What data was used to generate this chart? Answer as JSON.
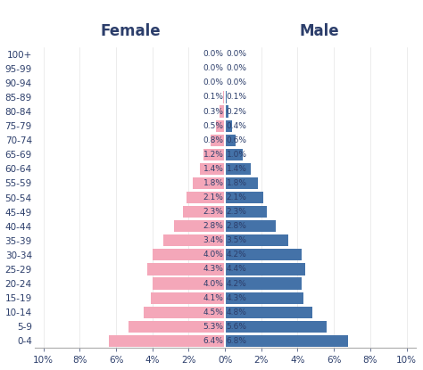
{
  "age_groups": [
    "0-4",
    "5-9",
    "10-14",
    "15-19",
    "20-24",
    "25-29",
    "30-34",
    "35-39",
    "40-44",
    "45-49",
    "50-54",
    "55-59",
    "60-64",
    "65-69",
    "70-74",
    "75-79",
    "80-84",
    "85-89",
    "90-94",
    "95-99",
    "100+"
  ],
  "female": [
    6.4,
    5.3,
    4.5,
    4.1,
    4.0,
    4.3,
    4.0,
    3.4,
    2.8,
    2.3,
    2.1,
    1.8,
    1.4,
    1.2,
    0.8,
    0.5,
    0.3,
    0.1,
    0.0,
    0.0,
    0.0
  ],
  "male": [
    6.8,
    5.6,
    4.8,
    4.3,
    4.2,
    4.4,
    4.2,
    3.5,
    2.8,
    2.3,
    2.1,
    1.8,
    1.4,
    1.0,
    0.6,
    0.4,
    0.2,
    0.1,
    0.0,
    0.0,
    0.0
  ],
  "female_color": "#f4a7b9",
  "male_color": "#4472a8",
  "female_title": "Female",
  "male_title": "Male",
  "xlim": 10.5,
  "title_fontsize": 12,
  "label_fontsize": 6.5,
  "tick_fontsize": 7.5,
  "ytick_fontsize": 7.5,
  "bar_height": 0.82,
  "background_color": "#ffffff",
  "text_color": "#2c3e6b",
  "axis_color": "#aaaaaa"
}
